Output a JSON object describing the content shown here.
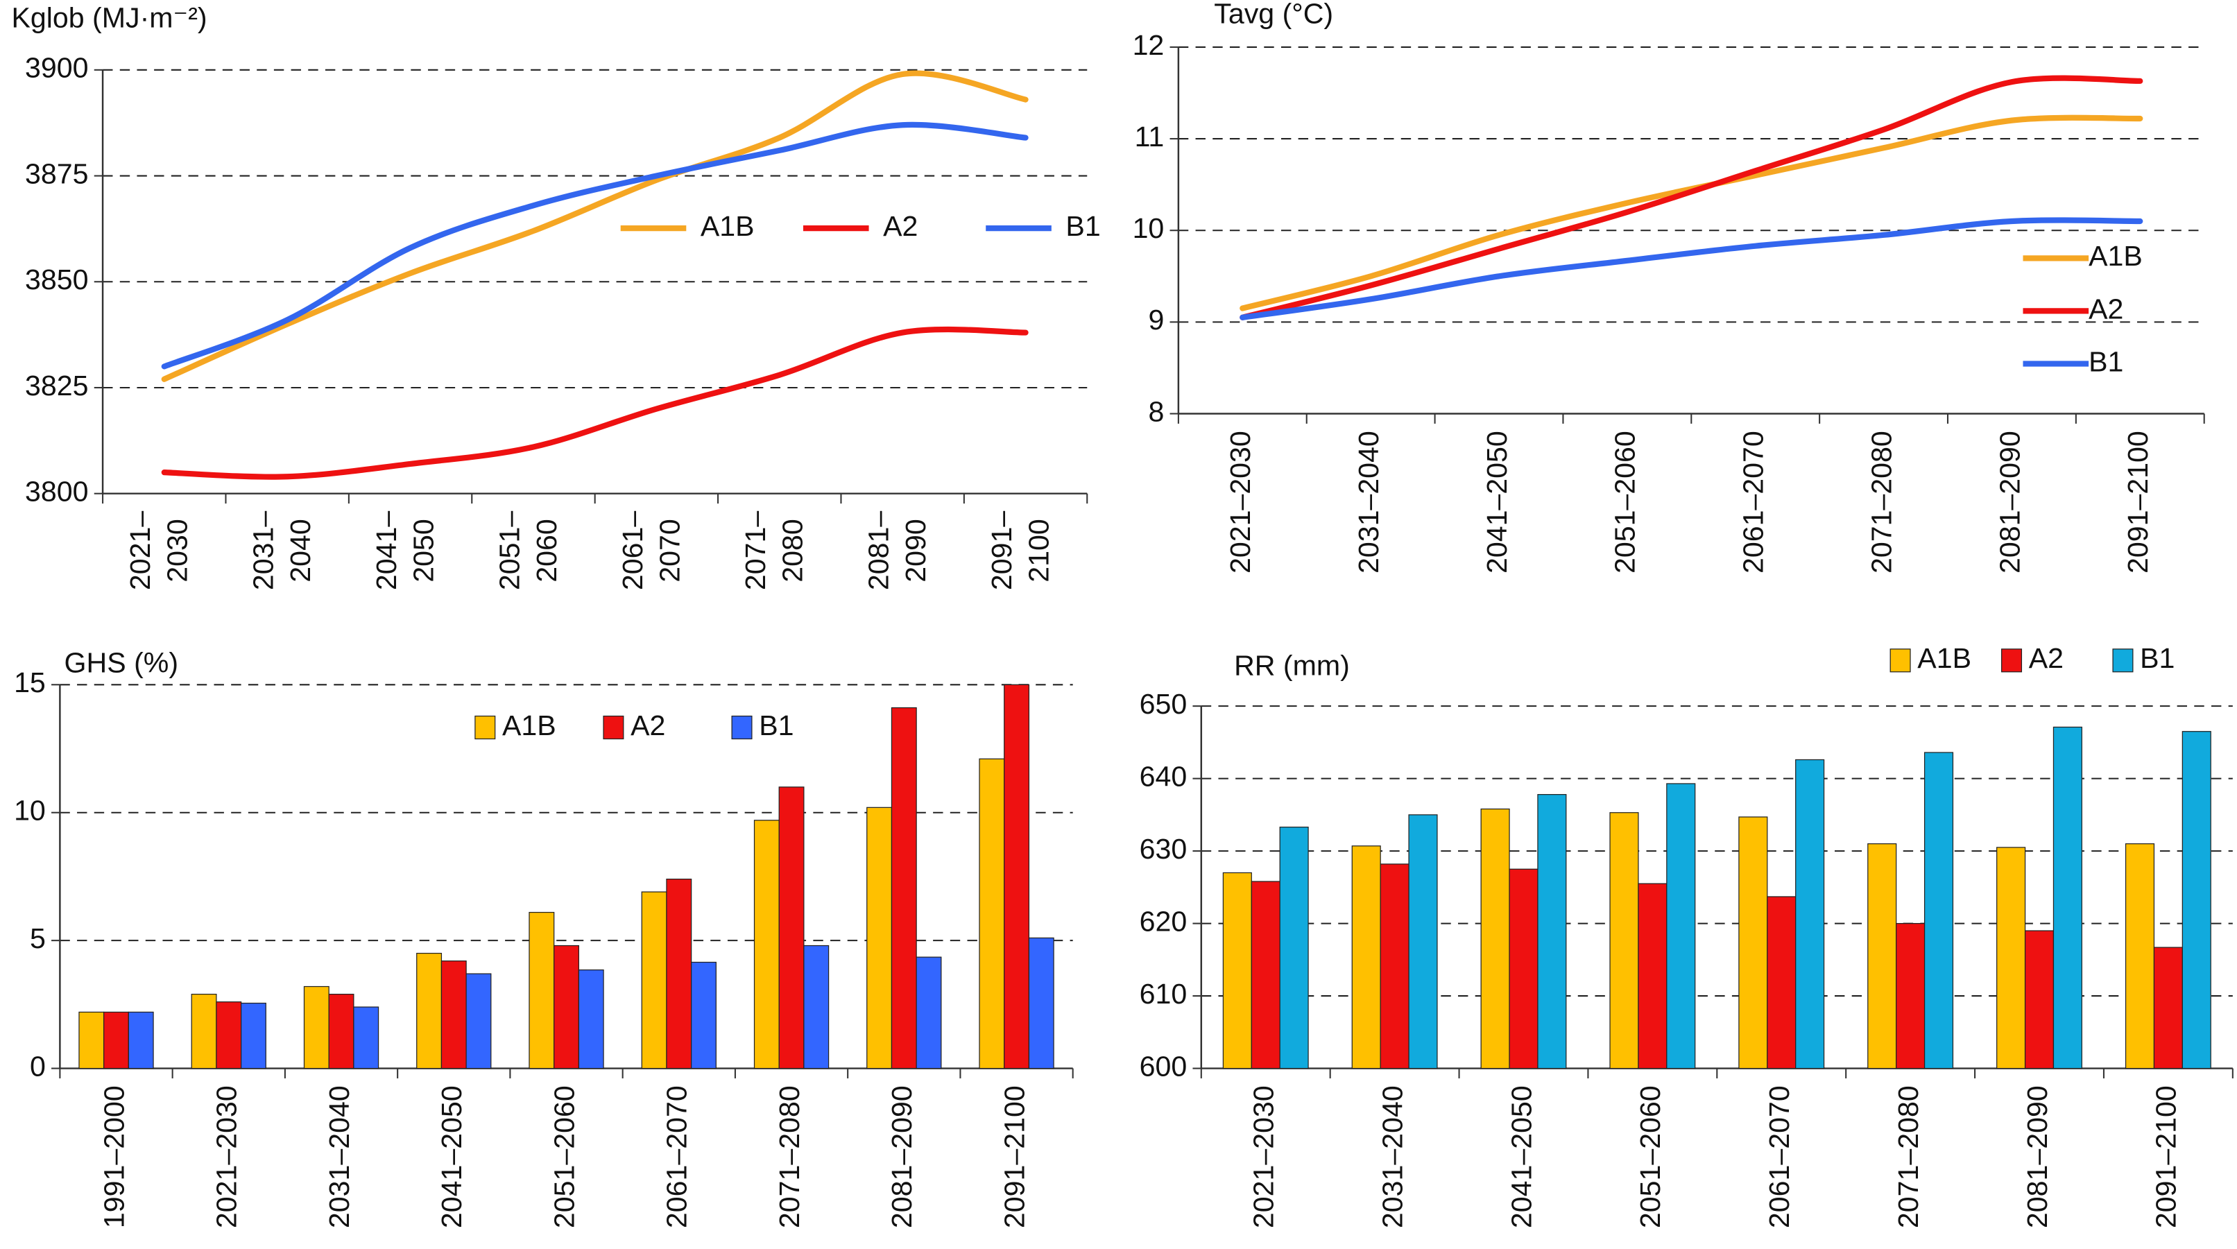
{
  "chart_data": [
    {
      "type": "line",
      "title": "Kglob (MJ·m⁻²)",
      "categories": [
        "2021–2030",
        "2031–2040",
        "2041–2050",
        "2051–2060",
        "2061–2070",
        "2071–2080",
        "2081–2090",
        "2091–2100"
      ],
      "series": [
        {
          "name": "A1B",
          "color": "#f5a623",
          "values": [
            3827,
            3840,
            3852,
            3862,
            3874,
            3884,
            3899,
            3893
          ]
        },
        {
          "name": "A2",
          "color": "#ee1111",
          "values": [
            3805,
            3804,
            3807,
            3811,
            3820,
            3828,
            3838,
            3838
          ]
        },
        {
          "name": "B1",
          "color": "#3366ee",
          "values": [
            3830,
            3841,
            3858,
            3868,
            3875,
            3881,
            3887,
            3884
          ]
        }
      ],
      "ylim": [
        3800,
        3900
      ],
      "yticks": [
        3800,
        3825,
        3850,
        3875,
        3900
      ],
      "grid": true,
      "legend": "top-right"
    },
    {
      "type": "line",
      "title": "Tavg (°C)",
      "categories": [
        "2021–2030",
        "2031–2040",
        "2041–2050",
        "2051–2060",
        "2061–2070",
        "2071–2080",
        "2081–2090",
        "2091–2100"
      ],
      "series": [
        {
          "name": "A1B",
          "color": "#f5a623",
          "values": [
            9.15,
            9.5,
            9.95,
            10.3,
            10.6,
            10.9,
            11.2,
            11.22
          ]
        },
        {
          "name": "A2",
          "color": "#ee1111",
          "values": [
            9.05,
            9.4,
            9.8,
            10.2,
            10.65,
            11.1,
            11.62,
            11.63
          ]
        },
        {
          "name": "B1",
          "color": "#3366ee",
          "values": [
            9.05,
            9.25,
            9.5,
            9.67,
            9.83,
            9.95,
            10.1,
            10.1
          ]
        }
      ],
      "ylim": [
        8,
        12
      ],
      "yticks": [
        8,
        9,
        10,
        11,
        12
      ],
      "grid": true,
      "legend": "right"
    },
    {
      "type": "bar",
      "title": "GHS (%)",
      "categories": [
        "1991–2000",
        "2021–2030",
        "2031–2040",
        "2041–2050",
        "2051–2060",
        "2061–2070",
        "2071–2080",
        "2081–2090",
        "2091–2100"
      ],
      "series": [
        {
          "name": "A1B",
          "color": "#ffc000",
          "values": [
            2.2,
            2.9,
            3.2,
            4.5,
            6.1,
            6.9,
            9.7,
            10.2,
            12.1
          ]
        },
        {
          "name": "A2",
          "color": "#ee1111",
          "values": [
            2.2,
            2.6,
            2.9,
            4.2,
            4.8,
            7.4,
            11,
            14.1,
            15
          ]
        },
        {
          "name": "B1",
          "color": "#3366ff",
          "values": [
            2.2,
            2.55,
            2.4,
            3.7,
            3.85,
            4.15,
            4.8,
            4.35,
            5.1
          ]
        }
      ],
      "ylim": [
        0,
        15
      ],
      "yticks": [
        0,
        5,
        10,
        15
      ],
      "grid": true,
      "legend": "top-right"
    },
    {
      "type": "bar",
      "title": "RR (mm)",
      "categories": [
        "2021–2030",
        "2031–2040",
        "2041–2050",
        "2051–2060",
        "2061–2070",
        "2071–2080",
        "2081–2090",
        "2091–2100"
      ],
      "series": [
        {
          "name": "A1B",
          "color": "#ffc000",
          "values": [
            627,
            630.7,
            635.8,
            635.3,
            634.7,
            631,
            630.5,
            631
          ]
        },
        {
          "name": "A2",
          "color": "#ee1111",
          "values": [
            625.8,
            628.2,
            627.5,
            625.5,
            623.7,
            620,
            619,
            616.7
          ]
        },
        {
          "name": "B1",
          "color": "#11aadd",
          "values": [
            633.3,
            635,
            637.8,
            639.3,
            642.6,
            643.6,
            647.1,
            646.5
          ]
        }
      ],
      "ylim": [
        600,
        650
      ],
      "yticks": [
        600,
        610,
        620,
        630,
        640,
        650
      ],
      "grid": true,
      "legend": "top-right"
    }
  ]
}
